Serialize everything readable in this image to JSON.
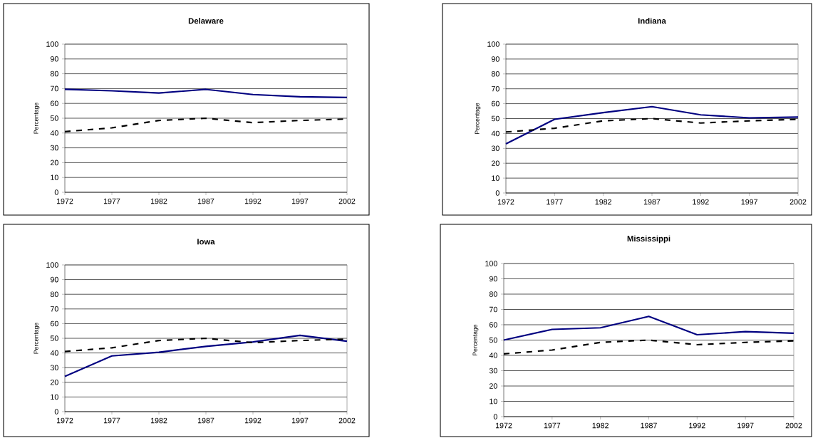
{
  "chart_data": [
    {
      "type": "line",
      "title": "Delaware",
      "ylabel": "Percentage",
      "x": [
        1972,
        1977,
        1982,
        1987,
        1992,
        1997,
        2002
      ],
      "xlim": [
        1972,
        2002
      ],
      "xticks": [
        1972,
        1977,
        1982,
        1987,
        1992,
        1997,
        2002
      ],
      "ylim": [
        0,
        100
      ],
      "yticks": [
        0,
        10,
        20,
        30,
        40,
        50,
        60,
        70,
        80,
        90,
        100
      ],
      "grid": "y",
      "marker": "none",
      "series": [
        {
          "color": "#000080",
          "line_style": "solid",
          "values": [
            69.5,
            68.5,
            67,
            69.5,
            66,
            64.5,
            64
          ]
        },
        {
          "color": "#000000",
          "line_style": "dashed",
          "values": [
            41,
            43.5,
            48.5,
            50,
            47,
            48.5,
            49.5
          ]
        }
      ]
    },
    {
      "type": "line",
      "title": "Indiana",
      "ylabel": "Percentage",
      "x": [
        1972,
        1977,
        1982,
        1987,
        1992,
        1997,
        2002
      ],
      "xlim": [
        1972,
        2002
      ],
      "xticks": [
        1972,
        1977,
        1982,
        1987,
        1992,
        1997,
        2002
      ],
      "ylim": [
        0,
        100
      ],
      "yticks": [
        0,
        10,
        20,
        30,
        40,
        50,
        60,
        70,
        80,
        90,
        100
      ],
      "grid": "y",
      "marker": "none",
      "series": [
        {
          "color": "#000080",
          "line_style": "solid",
          "values": [
            33,
            49.5,
            54,
            58,
            52.5,
            50.5,
            51
          ]
        },
        {
          "color": "#000000",
          "line_style": "dashed",
          "values": [
            41,
            43.5,
            48.5,
            50,
            47,
            48.5,
            49.5
          ]
        }
      ]
    },
    {
      "type": "line",
      "title": "Iowa",
      "ylabel": "Percentage",
      "x": [
        1972,
        1977,
        1982,
        1987,
        1992,
        1997,
        2002
      ],
      "xlim": [
        1972,
        2002
      ],
      "xticks": [
        1972,
        1977,
        1982,
        1987,
        1992,
        1997,
        2002
      ],
      "ylim": [
        0,
        100
      ],
      "yticks": [
        0,
        10,
        20,
        30,
        40,
        50,
        60,
        70,
        80,
        90,
        100
      ],
      "grid": "y",
      "marker": "none",
      "series": [
        {
          "color": "#000080",
          "line_style": "solid",
          "values": [
            24,
            38,
            40.5,
            44.5,
            47.5,
            52,
            48
          ]
        },
        {
          "color": "#000000",
          "line_style": "dashed",
          "values": [
            41,
            43.5,
            48.5,
            50,
            47,
            48.5,
            49.5
          ]
        }
      ]
    },
    {
      "type": "line",
      "title": "Mississippi",
      "ylabel": "Percentage",
      "x": [
        1972,
        1977,
        1982,
        1987,
        1992,
        1997,
        2002
      ],
      "xlim": [
        1972,
        2002
      ],
      "xticks": [
        1972,
        1977,
        1982,
        1987,
        1992,
        1997,
        2002
      ],
      "ylim": [
        0,
        100
      ],
      "yticks": [
        0,
        10,
        20,
        30,
        40,
        50,
        60,
        70,
        80,
        90,
        100
      ],
      "grid": "y",
      "marker": "none",
      "series": [
        {
          "color": "#000080",
          "line_style": "solid",
          "values": [
            50,
            57,
            58,
            65.5,
            53.5,
            55.5,
            54.5
          ]
        },
        {
          "color": "#000000",
          "line_style": "dashed",
          "values": [
            41,
            43.5,
            48.5,
            50,
            47,
            48.5,
            49.5
          ]
        }
      ]
    }
  ]
}
